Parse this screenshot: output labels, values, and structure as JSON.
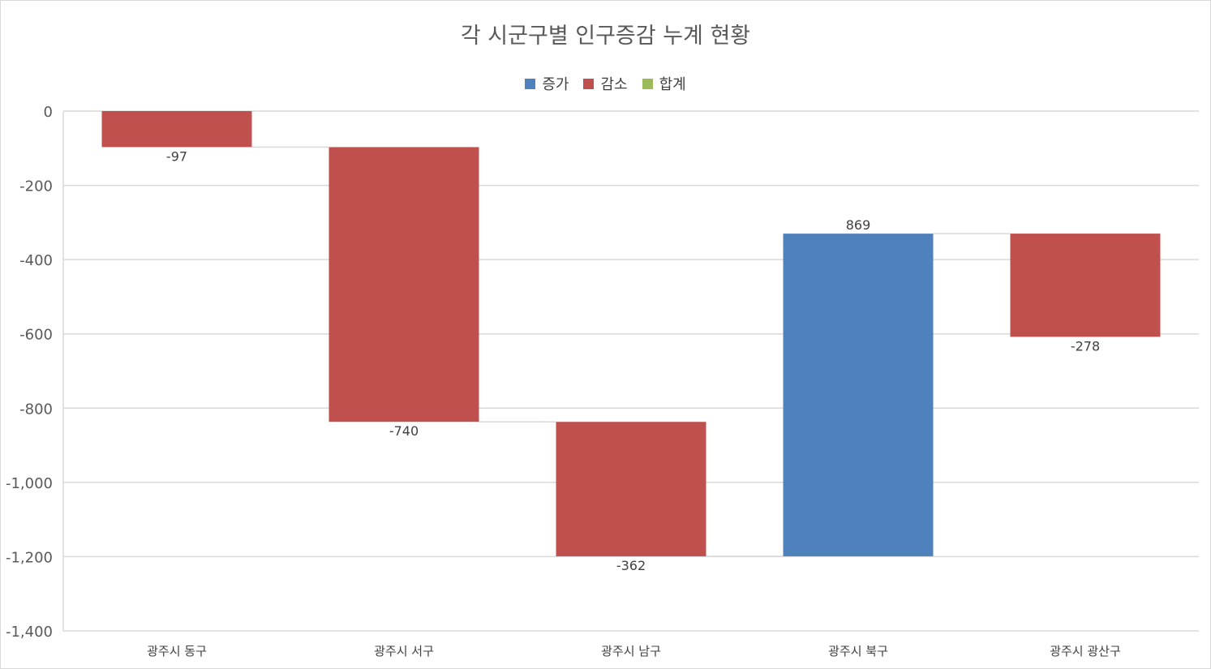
{
  "chart_data": {
    "type": "bar",
    "subtype": "waterfall",
    "title": "각 시군구별 인구증감 누계 현황",
    "legend": {
      "placement": "top",
      "entries": [
        {
          "name": "증가",
          "color": "#4f81bd"
        },
        {
          "name": "감소",
          "color": "#c0504d"
        },
        {
          "name": "합계",
          "color": "#9bbb59"
        }
      ]
    },
    "categories": [
      "광주시 동구",
      "광주시 서구",
      "광주시 남구",
      "광주시 북구",
      "광주시 광산구"
    ],
    "values": [
      -97,
      -740,
      -362,
      869,
      -278
    ],
    "data_labels": [
      "-97",
      "-740",
      "-362",
      "869",
      "-278"
    ],
    "ylim": [
      -1400,
      0
    ],
    "yticks": [
      0,
      -200,
      -400,
      -600,
      -800,
      -1000,
      -1200,
      -1400
    ],
    "ytick_labels": [
      "0",
      "-200",
      "-400",
      "-600",
      "-800",
      "-1,000",
      "-1,200",
      "-1,400"
    ],
    "grid": true,
    "connector_lines": true,
    "xlabel": "",
    "ylabel": ""
  }
}
